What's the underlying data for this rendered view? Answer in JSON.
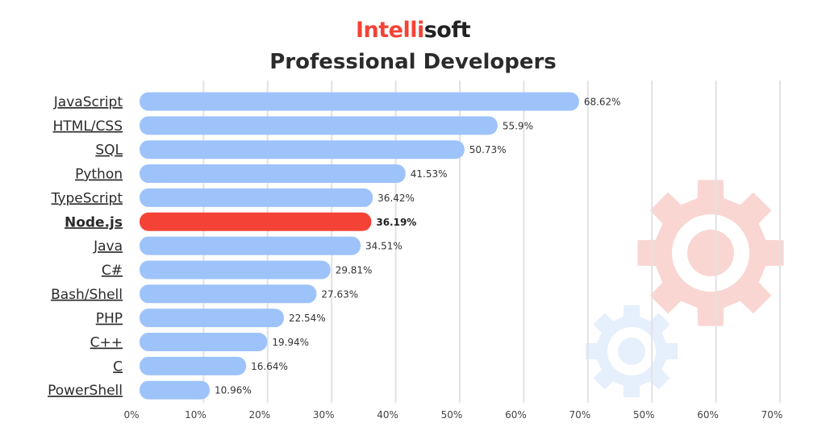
{
  "header": {
    "brand_part1": "Intelli",
    "brand_part2": "soft",
    "title": "Professional Developers"
  },
  "colors": {
    "brand_red": "#f44336",
    "bar_blue": "#9ec3fb",
    "highlight_red": "#f44336",
    "gridline": "#e2e2e2",
    "gear_red": "#f9d6d2",
    "gear_blue": "#e6effc"
  },
  "decorations": [
    "gear-icon-large",
    "gear-icon-small"
  ],
  "chart_data": {
    "type": "bar",
    "orientation": "horizontal",
    "title": "Professional Developers",
    "categories": [
      "JavaScript",
      "HTML/CSS",
      "SQL",
      "Python",
      "TypeScript",
      "Node.js",
      "Java",
      "C#",
      "Bash/Shell",
      "PHP",
      "C++",
      "C",
      "PowerShell"
    ],
    "values": [
      68.62,
      55.9,
      50.73,
      41.53,
      36.42,
      36.19,
      34.51,
      29.81,
      27.63,
      22.54,
      19.94,
      16.64,
      10.96
    ],
    "value_labels": [
      "68.62%",
      "55.9%",
      "50.73%",
      "41.53%",
      "36.42%",
      "36.19%",
      "34.51%",
      "29.81%",
      "27.63%",
      "22.54%",
      "19.94%",
      "16.64%",
      "10.96%"
    ],
    "highlight_category": "Node.js",
    "x_ticks": [
      "0%",
      "10%",
      "20%",
      "30%",
      "40%",
      "50%",
      "60%",
      "70%",
      "50%",
      "60%",
      "70%"
    ],
    "xlim": [
      0,
      100
    ],
    "grid": true,
    "xlabel": "",
    "ylabel": ""
  }
}
